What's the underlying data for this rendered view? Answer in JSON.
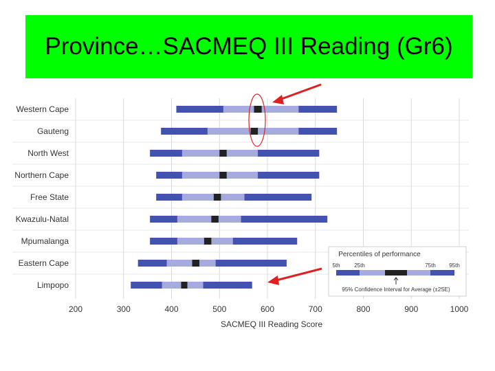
{
  "slide": {
    "title": "Province…SACMEQ III Reading (Gr6)"
  },
  "colors": {
    "banner": "#00ff00",
    "outer": "#4352b0",
    "inner": "#a5acdd",
    "ci": "#222222",
    "annotation": "#e02020"
  },
  "chart_data": {
    "type": "bar",
    "subtype": "percentile-bar",
    "title": "",
    "xlabel": "SACMEQ III Reading Score",
    "ylabel": "",
    "xlim": [
      200,
      1000
    ],
    "xticks": [
      "200",
      "300",
      "400",
      "500",
      "600",
      "700",
      "800",
      "900",
      "1000"
    ],
    "grid": true,
    "categories": [
      "Western Cape",
      "Gauteng",
      "North West",
      "Northern Cape",
      "Free State",
      "Kwazulu-Natal",
      "Mpumalanga",
      "Eastern Cape",
      "Limpopo"
    ],
    "series": [
      {
        "name": "5th",
        "values": [
          410,
          378,
          355,
          368,
          368,
          355,
          355,
          330,
          315
        ]
      },
      {
        "name": "25th",
        "values": [
          508,
          475,
          422,
          422,
          422,
          412,
          412,
          390,
          380
        ]
      },
      {
        "name": "CI low",
        "values": [
          572,
          565,
          500,
          500,
          488,
          483,
          468,
          443,
          420
        ]
      },
      {
        "name": "CI high",
        "values": [
          588,
          580,
          515,
          515,
          503,
          498,
          483,
          458,
          433
        ]
      },
      {
        "name": "75th",
        "values": [
          665,
          665,
          580,
          580,
          552,
          545,
          528,
          492,
          466
        ]
      },
      {
        "name": "95th",
        "values": [
          745,
          745,
          708,
          708,
          692,
          725,
          662,
          640,
          568
        ]
      }
    ],
    "legend": {
      "title": "Percentiles of performance",
      "labels": [
        "5th",
        "25th",
        "75th",
        "95th"
      ],
      "note": "95% Confidence Interval for Average (±2SE)",
      "placement": "bottom-right"
    },
    "annotations": {
      "highlighted_categories": [
        "Western Cape",
        "Gauteng"
      ],
      "arrows": 2
    }
  }
}
